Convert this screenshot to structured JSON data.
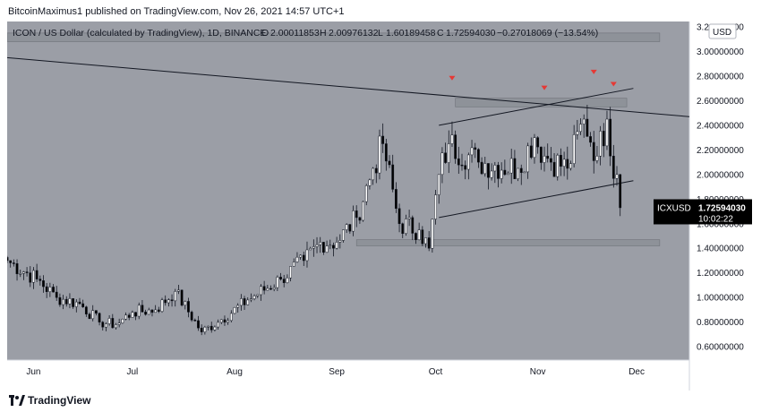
{
  "header_text": "BitcoinMaximus1 published on TradingView.com, Nov 26, 2021 14:57 UTC+1",
  "legend": {
    "symbol": "ICON / US Dollar (calculated by TradingView), 1D, BINANCE",
    "o_label": "O",
    "o_val": "2.00011853",
    "h_label": "H",
    "h_val": "2.00976132",
    "l_label": "L",
    "l_val": "1.60189458",
    "c_label": "C",
    "c_val": "1.72594030",
    "change": "−0.27018069 (−13.54%)"
  },
  "currency_badge": "USD",
  "price_tag": {
    "symbol": "ICXUSD",
    "price": "1.72594030",
    "countdown": "10:02:22"
  },
  "footer_brand": "TradingView",
  "colors": {
    "plot_bg": "#9b9ea6",
    "axis_bg": "#ffffff",
    "up_candle": "#ffffff",
    "down_candle": "#000000",
    "marker": "#e53935",
    "price_tag_bg": "#000000",
    "zone": "#8a8d94"
  },
  "chart_data": {
    "type": "candlestick",
    "title": "ICON / US Dollar (calculated by TradingView), 1D, BINANCE",
    "ylim": [
      0.55,
      3.2
    ],
    "y_ticks": [
      "3.20000000",
      "3.00000000",
      "2.80000000",
      "2.60000000",
      "2.40000000",
      "2.20000000",
      "2.00000000",
      "1.80000000",
      "1.60000000",
      "1.40000000",
      "1.20000000",
      "1.00000000",
      "0.80000000",
      "0.60000000"
    ],
    "y_tick_values": [
      3.2,
      3.0,
      2.8,
      2.6,
      2.4,
      2.2,
      2.0,
      1.8,
      1.6,
      1.4,
      1.2,
      1.0,
      0.8,
      0.6
    ],
    "x_ticks": [
      "Jun",
      "Jul",
      "Aug",
      "Sep",
      "Oct",
      "Nov",
      "Dec"
    ],
    "x_tick_dates": [
      "2021-06-01",
      "2021-07-01",
      "2021-08-01",
      "2021-09-01",
      "2021-10-01",
      "2021-11-01",
      "2021-12-01"
    ],
    "candle_anchors": [
      {
        "date": "2021-05-24",
        "close": 1.3
      },
      {
        "date": "2021-06-02",
        "close": 1.15
      },
      {
        "date": "2021-06-08",
        "close": 1.0
      },
      {
        "date": "2021-06-15",
        "close": 0.95
      },
      {
        "date": "2021-06-21",
        "close": 0.8
      },
      {
        "date": "2021-06-26",
        "close": 0.78
      },
      {
        "date": "2021-07-01",
        "close": 0.88
      },
      {
        "date": "2021-07-08",
        "close": 0.9
      },
      {
        "date": "2021-07-14",
        "close": 1.05
      },
      {
        "date": "2021-07-22",
        "close": 0.72
      },
      {
        "date": "2021-07-28",
        "close": 0.82
      },
      {
        "date": "2021-08-05",
        "close": 0.98
      },
      {
        "date": "2021-08-15",
        "close": 1.15
      },
      {
        "date": "2021-08-22",
        "close": 1.3
      },
      {
        "date": "2021-08-27",
        "close": 1.45
      },
      {
        "date": "2021-09-01",
        "close": 1.45
      },
      {
        "date": "2021-09-07",
        "close": 1.65
      },
      {
        "date": "2021-09-12",
        "close": 2.05
      },
      {
        "date": "2021-09-15",
        "close": 2.25
      },
      {
        "date": "2021-09-20",
        "close": 1.6
      },
      {
        "date": "2021-09-26",
        "close": 1.55
      },
      {
        "date": "2021-09-29",
        "close": 1.4
      },
      {
        "date": "2021-10-02",
        "close": 2.0
      },
      {
        "date": "2021-10-05",
        "close": 2.25
      },
      {
        "date": "2021-10-14",
        "close": 2.1
      },
      {
        "date": "2021-10-26",
        "close": 2.05
      },
      {
        "date": "2021-10-31",
        "close": 2.3
      },
      {
        "date": "2021-11-03",
        "close": 2.15
      },
      {
        "date": "2021-11-10",
        "close": 2.05
      },
      {
        "date": "2021-11-15",
        "close": 2.45
      },
      {
        "date": "2021-11-19",
        "close": 2.15
      },
      {
        "date": "2021-11-22",
        "close": 2.45
      },
      {
        "date": "2021-11-23",
        "close": 2.15
      },
      {
        "date": "2021-11-25",
        "close": 2.0
      },
      {
        "date": "2021-11-26",
        "close": 1.73
      }
    ],
    "levels": [
      {
        "name": "resistance-zone",
        "from": 2.55,
        "to": 2.62,
        "start": "2021-10-07",
        "end": "2021-11-28"
      },
      {
        "name": "support-zone",
        "from": 1.42,
        "to": 1.47,
        "start": "2021-09-07",
        "end": "2021-12-08"
      },
      {
        "name": "top-zone",
        "from": 3.08,
        "to": 3.15,
        "start": "2021-05-24",
        "end": "2021-12-08"
      }
    ],
    "trendlines": [
      {
        "name": "long-descending-resistance",
        "points": [
          [
            "2021-05-24",
            2.95
          ],
          [
            "2021-12-17",
            2.47
          ]
        ]
      },
      {
        "name": "channel-upper",
        "points": [
          [
            "2021-10-02",
            2.4
          ],
          [
            "2021-11-30",
            2.7
          ]
        ]
      },
      {
        "name": "channel-lower",
        "points": [
          [
            "2021-10-02",
            1.65
          ],
          [
            "2021-11-30",
            1.95
          ]
        ]
      }
    ],
    "markers": [
      {
        "date": "2021-10-06",
        "price": 2.78
      },
      {
        "date": "2021-11-03",
        "price": 2.7
      },
      {
        "date": "2021-11-18",
        "price": 2.83
      },
      {
        "date": "2021-11-24",
        "price": 2.73
      }
    ],
    "last_close": 1.7259403
  }
}
